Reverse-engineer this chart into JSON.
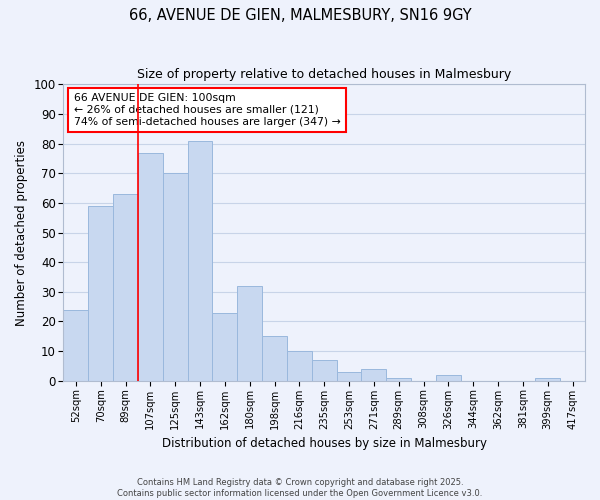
{
  "title": "66, AVENUE DE GIEN, MALMESBURY, SN16 9GY",
  "subtitle": "Size of property relative to detached houses in Malmesbury",
  "xlabel": "Distribution of detached houses by size in Malmesbury",
  "ylabel": "Number of detached properties",
  "categories": [
    "52sqm",
    "70sqm",
    "89sqm",
    "107sqm",
    "125sqm",
    "143sqm",
    "162sqm",
    "180sqm",
    "198sqm",
    "216sqm",
    "235sqm",
    "253sqm",
    "271sqm",
    "289sqm",
    "308sqm",
    "326sqm",
    "344sqm",
    "362sqm",
    "381sqm",
    "399sqm",
    "417sqm"
  ],
  "values": [
    24,
    59,
    63,
    77,
    70,
    81,
    23,
    32,
    15,
    10,
    7,
    3,
    4,
    1,
    0,
    2,
    0,
    0,
    0,
    1,
    0
  ],
  "bar_color": "#c8d8f0",
  "bar_edge_color": "#9ab8dd",
  "red_line_x": 2.5,
  "annotation_text": "66 AVENUE DE GIEN: 100sqm\n← 26% of detached houses are smaller (121)\n74% of semi-detached houses are larger (347) →",
  "annotation_box_color": "white",
  "annotation_border_color": "red",
  "ylim": [
    0,
    100
  ],
  "yticks": [
    0,
    10,
    20,
    30,
    40,
    50,
    60,
    70,
    80,
    90,
    100
  ],
  "grid_color": "#c8d4e8",
  "background_color": "#eef2fc",
  "footer_line1": "Contains HM Land Registry data © Crown copyright and database right 2025.",
  "footer_line2": "Contains public sector information licensed under the Open Government Licence v3.0."
}
